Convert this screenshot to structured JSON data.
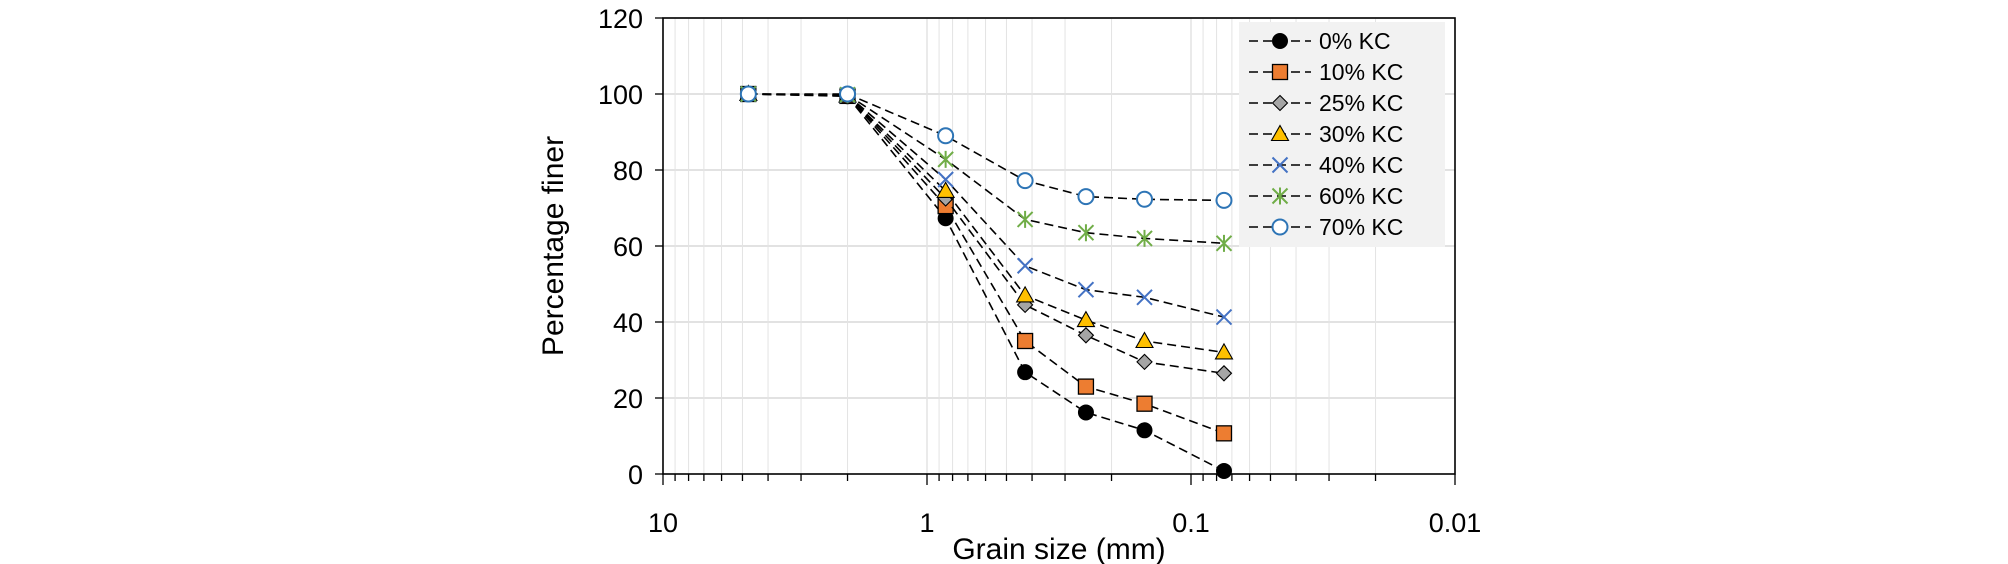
{
  "chart_data": {
    "type": "line",
    "title": "",
    "xlabel": "Grain size (mm)",
    "ylabel": "Percentage finer",
    "xscale": "log",
    "xaxis_reversed": true,
    "xlim": [
      10,
      0.01
    ],
    "ylim": [
      0,
      120
    ],
    "xticks": [
      10,
      1,
      0.1,
      0.01
    ],
    "xtick_labels": [
      "10",
      "1",
      "0.1",
      "0.01"
    ],
    "yticks": [
      0,
      20,
      40,
      60,
      80,
      100,
      120
    ],
    "ytick_labels": [
      "0",
      "20",
      "40",
      "60",
      "80",
      "100",
      "120"
    ],
    "grid": "major and minor vertical, major horizontal",
    "legend_position": "top-right",
    "x": [
      4.75,
      2.0,
      0.85,
      0.425,
      0.25,
      0.15,
      0.075
    ],
    "series": [
      {
        "name": "0% KC",
        "marker": "circle",
        "color": "#000000",
        "values": [
          100,
          99.4,
          67.3,
          26.8,
          16.2,
          11.5,
          0.8
        ]
      },
      {
        "name": "10% KC",
        "marker": "square",
        "color": "#ED7D31",
        "values": [
          100,
          99.5,
          70.5,
          35.0,
          23.0,
          18.5,
          10.7
        ]
      },
      {
        "name": "25% KC",
        "marker": "diamond",
        "color": "#A5A5A5",
        "values": [
          100,
          99.6,
          72.5,
          44.5,
          36.5,
          29.5,
          26.5
        ]
      },
      {
        "name": "30% KC",
        "marker": "triangle",
        "color": "#FFC000",
        "values": [
          100,
          99.6,
          74.5,
          47.0,
          40.5,
          35.0,
          32.0
        ]
      },
      {
        "name": "40% KC",
        "marker": "x",
        "color": "#4472C4",
        "values": [
          100,
          99.7,
          77.5,
          54.8,
          48.5,
          46.5,
          41.3
        ]
      },
      {
        "name": "60% KC",
        "marker": "star",
        "color": "#70AD47",
        "values": [
          100,
          99.8,
          82.8,
          67.0,
          63.5,
          62.0,
          60.7
        ]
      },
      {
        "name": "70% KC",
        "marker": "open-circle",
        "color": "#2E75B6",
        "values": [
          100,
          100,
          89.0,
          77.2,
          73.0,
          72.3,
          72.0
        ]
      }
    ]
  }
}
